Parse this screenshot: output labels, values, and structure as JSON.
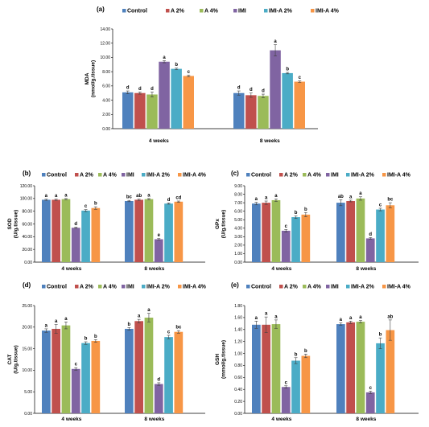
{
  "chart_data": [
    {
      "type": "bar",
      "panel_label": "(a)",
      "categories": [
        "4 weeks",
        "8 weeks"
      ],
      "ylabel_lines": [
        "MDA",
        "(nmol/g.tissue)"
      ],
      "ylim": [
        0,
        14
      ],
      "yticks": [
        "0.00",
        "2.00",
        "4.00",
        "6.00",
        "8.00",
        "10.00",
        "12.00",
        "14.00"
      ],
      "grid": false,
      "legend": "top",
      "series": [
        {
          "name": "Control",
          "values": [
            5.1,
            5.0
          ],
          "errors": [
            0.2,
            0.3
          ],
          "letters": [
            "d",
            "d"
          ]
        },
        {
          "name": "A 2%",
          "values": [
            5.0,
            4.7
          ],
          "errors": [
            0.15,
            0.3
          ],
          "letters": [
            "d",
            "d"
          ]
        },
        {
          "name": "A 4%",
          "values": [
            4.8,
            4.6
          ],
          "errors": [
            0.35,
            0.25
          ],
          "letters": [
            "d",
            "d"
          ]
        },
        {
          "name": "IMI",
          "values": [
            9.4,
            11.0
          ],
          "errors": [
            0.15,
            0.8
          ],
          "letters": [
            "a",
            "a"
          ]
        },
        {
          "name": "IMI-A 2%",
          "values": [
            8.4,
            7.8
          ],
          "errors": [
            0.1,
            0.1
          ],
          "letters": [
            "b",
            "b"
          ]
        },
        {
          "name": "IMI-A 4%",
          "values": [
            7.4,
            6.6
          ],
          "errors": [
            0.1,
            0.1
          ],
          "letters": [
            "c",
            "c"
          ]
        }
      ]
    },
    {
      "type": "bar",
      "panel_label": "(b)",
      "categories": [
        "4 weeks",
        "8 weeks"
      ],
      "ylabel_lines": [
        "SOD",
        "(U/g.tissue)"
      ],
      "ylim": [
        0,
        120
      ],
      "yticks": [
        "0.00",
        "20.00",
        "40.00",
        "60.00",
        "80.00",
        "100.00",
        "120.00"
      ],
      "grid": false,
      "legend": "top",
      "series": [
        {
          "name": "Control",
          "values": [
            98,
            96
          ],
          "errors": [
            1,
            1
          ],
          "letters": [
            "a",
            "bc"
          ]
        },
        {
          "name": "A 2%",
          "values": [
            98,
            98
          ],
          "errors": [
            1,
            1
          ],
          "letters": [
            "a",
            "ab"
          ]
        },
        {
          "name": "A 4%",
          "values": [
            99,
            99
          ],
          "errors": [
            1,
            1
          ],
          "letters": [
            "a",
            "a"
          ]
        },
        {
          "name": "IMI",
          "values": [
            54,
            36
          ],
          "errors": [
            1,
            1
          ],
          "letters": [
            "d",
            "e"
          ]
        },
        {
          "name": "IMI-A 2%",
          "values": [
            81,
            92
          ],
          "errors": [
            1.5,
            1
          ],
          "letters": [
            "c",
            "d"
          ]
        },
        {
          "name": "IMI-A 4%",
          "values": [
            85,
            95
          ],
          "errors": [
            2,
            1
          ],
          "letters": [
            "b",
            "cd"
          ]
        }
      ]
    },
    {
      "type": "bar",
      "panel_label": "(c)",
      "categories": [
        "4 weeks",
        "8 weeks"
      ],
      "ylabel_lines": [
        "GPx",
        "(U/g.tissue)"
      ],
      "ylim": [
        0,
        9
      ],
      "yticks": [
        "0.00",
        "1.00",
        "2.00",
        "3.00",
        "4.00",
        "5.00",
        "6.00",
        "7.00",
        "8.00",
        "9.00"
      ],
      "grid": false,
      "legend": "top",
      "series": [
        {
          "name": "Control",
          "values": [
            6.9,
            7.0
          ],
          "errors": [
            0.15,
            0.35
          ],
          "letters": [
            "a",
            "ab"
          ]
        },
        {
          "name": "A 2%",
          "values": [
            7.0,
            7.2
          ],
          "errors": [
            0.2,
            0.1
          ],
          "letters": [
            "a",
            "a"
          ]
        },
        {
          "name": "A 4%",
          "values": [
            7.3,
            7.5
          ],
          "errors": [
            0.15,
            0.2
          ],
          "letters": [
            "a",
            "a"
          ]
        },
        {
          "name": "IMI",
          "values": [
            3.7,
            2.8
          ],
          "errors": [
            0.15,
            0.1
          ],
          "letters": [
            "c",
            "d"
          ]
        },
        {
          "name": "IMI-A 2%",
          "values": [
            5.3,
            6.2
          ],
          "errors": [
            0.15,
            0.15
          ],
          "letters": [
            "b",
            "c"
          ]
        },
        {
          "name": "IMI-A 4%",
          "values": [
            5.6,
            6.7
          ],
          "errors": [
            0.25,
            0.3
          ],
          "letters": [
            "b",
            "bc"
          ]
        }
      ]
    },
    {
      "type": "bar",
      "panel_label": "(d)",
      "categories": [
        "4 weeks",
        "8 weeks"
      ],
      "ylabel_lines": [
        "CAT",
        "(U/g.tissue)"
      ],
      "ylim": [
        0,
        25
      ],
      "yticks": [
        "0.00",
        "5.00",
        "10.00",
        "15.00",
        "20.00",
        "25.00"
      ],
      "grid": false,
      "legend": "top",
      "series": [
        {
          "name": "Control",
          "values": [
            19.2,
            19.6
          ],
          "errors": [
            0.4,
            0.3
          ],
          "letters": [
            "a",
            "b"
          ]
        },
        {
          "name": "A 2%",
          "values": [
            19.6,
            21.4
          ],
          "errors": [
            1.0,
            0.4
          ],
          "letters": [
            "a",
            "a"
          ]
        },
        {
          "name": "A 4%",
          "values": [
            20.4,
            22.2
          ],
          "errors": [
            0.8,
            1.0
          ],
          "letters": [
            "a",
            "a"
          ]
        },
        {
          "name": "IMI",
          "values": [
            10.3,
            6.8
          ],
          "errors": [
            0.3,
            0.3
          ],
          "letters": [
            "c",
            "d"
          ]
        },
        {
          "name": "IMI-A 2%",
          "values": [
            16.3,
            17.7
          ],
          "errors": [
            0.3,
            0.4
          ],
          "letters": [
            "b",
            "c"
          ]
        },
        {
          "name": "IMI-A 4%",
          "values": [
            16.8,
            18.9
          ],
          "errors": [
            0.3,
            0.3
          ],
          "letters": [
            "b",
            "bc"
          ]
        }
      ]
    },
    {
      "type": "bar",
      "panel_label": "(e)",
      "categories": [
        "4 weeks",
        "8 weeks"
      ],
      "ylabel_lines": [
        "GSH",
        "(mmol/g.tissue)"
      ],
      "ylim": [
        0,
        1.8
      ],
      "yticks": [
        "0.00",
        "0.20",
        "0.40",
        "0.60",
        "0.80",
        "1.00",
        "1.20",
        "1.40",
        "1.60",
        "1.80"
      ],
      "grid": false,
      "legend": "top",
      "series": [
        {
          "name": "Control",
          "values": [
            1.48,
            1.49
          ],
          "errors": [
            0.06,
            0.02
          ],
          "letters": [
            "a",
            "a"
          ]
        },
        {
          "name": "A 2%",
          "values": [
            1.48,
            1.52
          ],
          "errors": [
            0.13,
            0.02
          ],
          "letters": [
            "a",
            "a"
          ]
        },
        {
          "name": "A 4%",
          "values": [
            1.49,
            1.53
          ],
          "errors": [
            0.07,
            0.02
          ],
          "letters": [
            "a",
            "a"
          ]
        },
        {
          "name": "IMI",
          "values": [
            0.44,
            0.35
          ],
          "errors": [
            0.02,
            0.02
          ],
          "letters": [
            "c",
            "c"
          ]
        },
        {
          "name": "IMI-A 2%",
          "values": [
            0.88,
            1.17
          ],
          "errors": [
            0.05,
            0.09
          ],
          "letters": [
            "b",
            "b"
          ]
        },
        {
          "name": "IMI-A 4%",
          "values": [
            0.96,
            1.39
          ],
          "errors": [
            0.03,
            0.17
          ],
          "letters": [
            "b",
            "ab"
          ]
        }
      ]
    }
  ],
  "colors": {
    "Control": "#4f81bd",
    "A 2%": "#c0504d",
    "A 4%": "#9bbb59",
    "IMI": "#8064a2",
    "IMI-A 2%": "#4bacc6",
    "IMI-A 4%": "#f79646",
    "error_bar": "#404040",
    "axis": "#000000"
  }
}
